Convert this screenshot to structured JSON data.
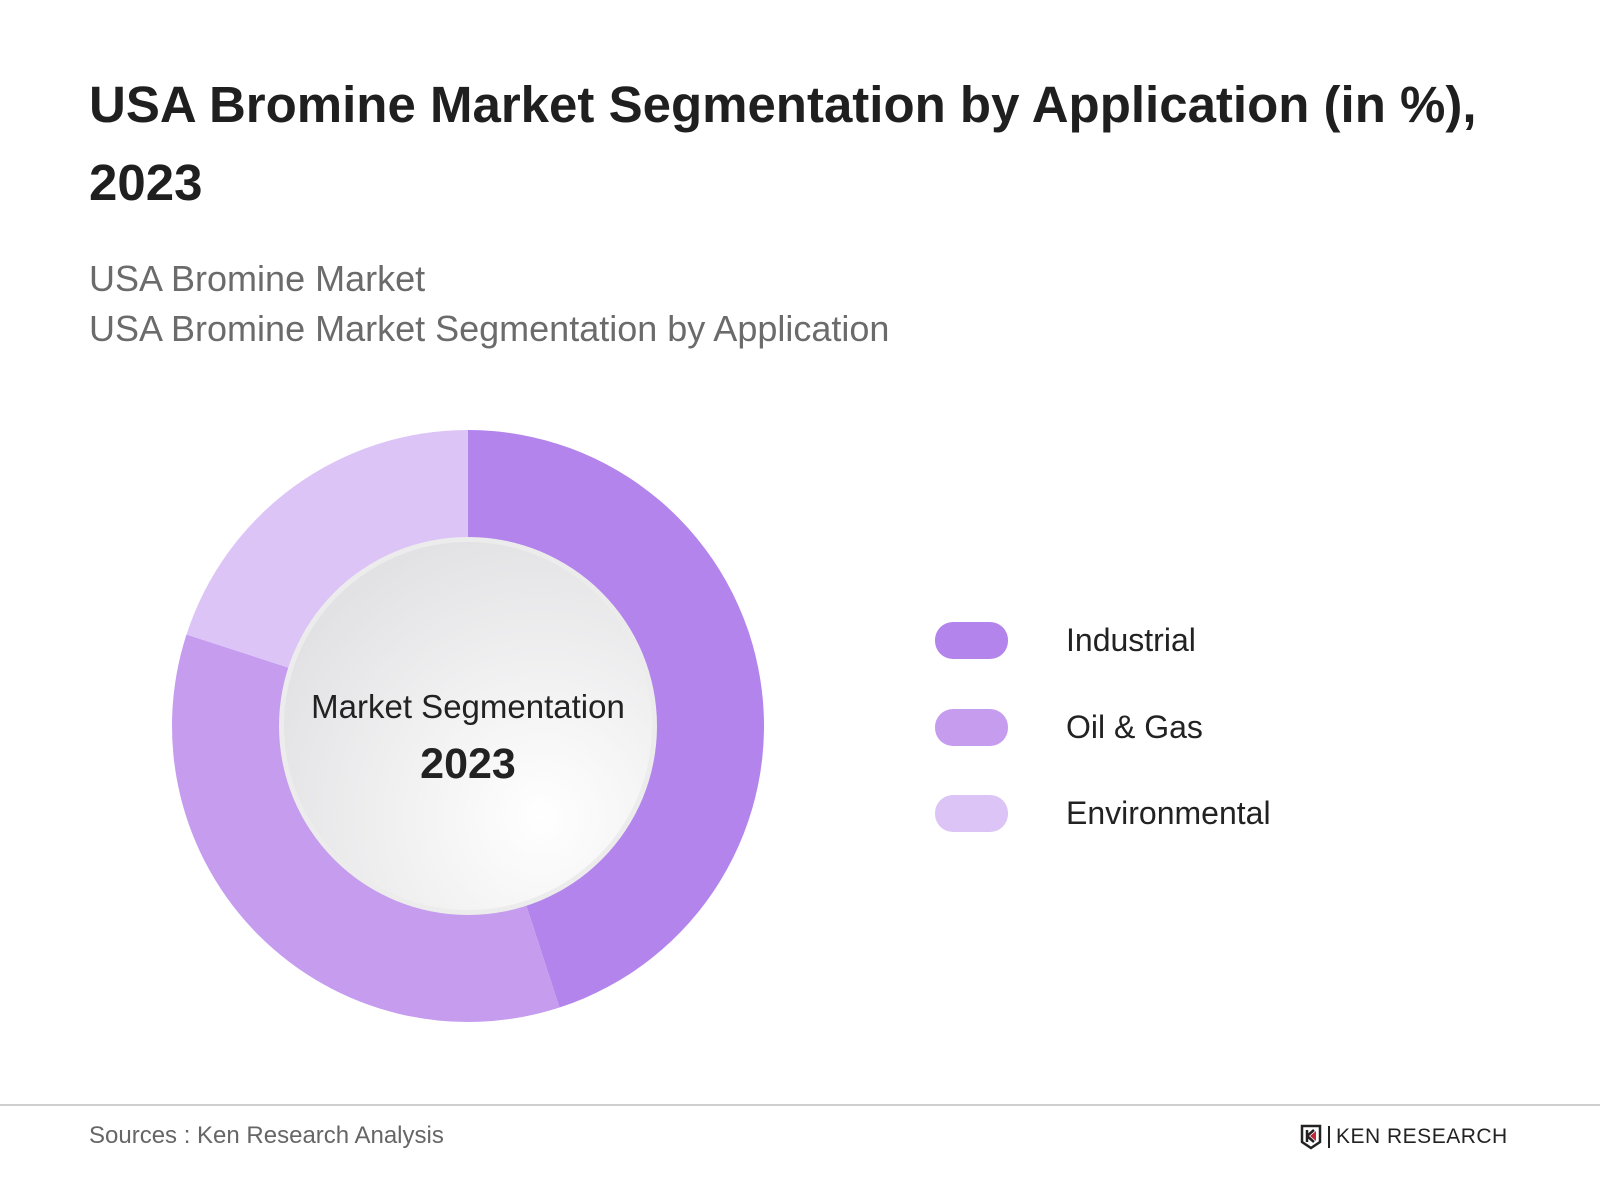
{
  "chart_data": {
    "type": "pie",
    "variant": "donut",
    "title": "USA Bromine Market Segmentation by Application (in %), 2023",
    "subtitles": [
      "USA Bromine Market",
      "USA Bromine Market Segmentation by Application"
    ],
    "center_label": "Market Segmentation",
    "center_year": "2023",
    "categories": [
      "Industrial",
      "Oil & Gas",
      "Environmental"
    ],
    "values": [
      45,
      35,
      20
    ],
    "colors": [
      "#b384ec",
      "#c59cee",
      "#dcc4f7"
    ],
    "legend_position": "right"
  },
  "footer": {
    "source": "Sources : Ken Research Analysis",
    "logo_text": "KEN RESEARCH"
  }
}
